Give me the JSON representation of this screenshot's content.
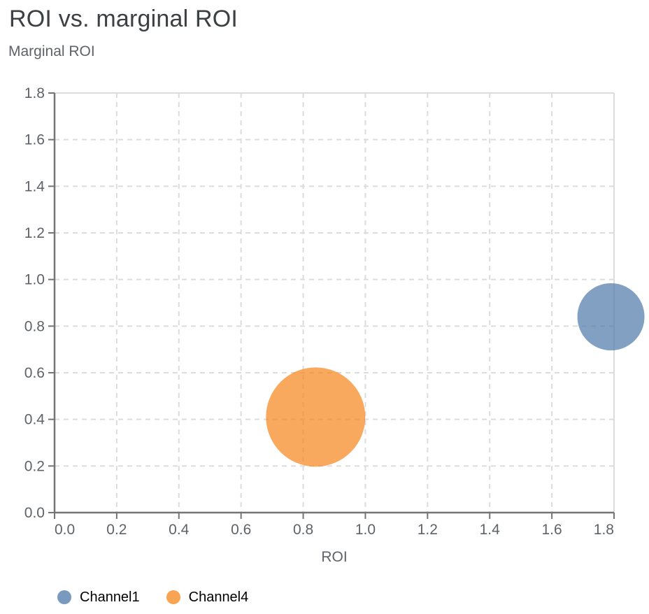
{
  "header": {
    "title": "ROI vs. marginal ROI"
  },
  "chart_data": {
    "type": "scatter",
    "title": "ROI vs. marginal ROI",
    "xlabel": "ROI",
    "ylabel": "Marginal ROI",
    "xlim": [
      0,
      1.8
    ],
    "ylim": [
      0,
      1.8
    ],
    "x_tick_labels": [
      "0.0",
      "0.2",
      "0.4",
      "0.6",
      "0.8",
      "1.0",
      "1.2",
      "1.4",
      "1.6",
      "1.8"
    ],
    "y_tick_labels": [
      "0.0",
      "0.2",
      "0.4",
      "0.6",
      "0.8",
      "1.0",
      "1.2",
      "1.4",
      "1.6",
      "1.8"
    ],
    "grid": "dashed",
    "legend_position": "bottom-left",
    "point_opacity": 0.7,
    "series": [
      {
        "name": "Channel1",
        "color": "#4c78a8",
        "points": [
          {
            "x": 1.79,
            "y": 0.84,
            "radius_px": 48
          }
        ]
      },
      {
        "name": "Channel4",
        "color": "#f58518",
        "points": [
          {
            "x": 0.84,
            "y": 0.41,
            "radius_px": 71
          }
        ]
      }
    ]
  },
  "colors": {
    "background": "#ffffff",
    "title": "#3c4043",
    "axis_label": "#5f6368",
    "tick_label": "#5f6368",
    "axis_line": "#757575",
    "gridline": "#dcdcdc",
    "plot_border": "#dcdcdc",
    "legend_text": "#000000"
  }
}
